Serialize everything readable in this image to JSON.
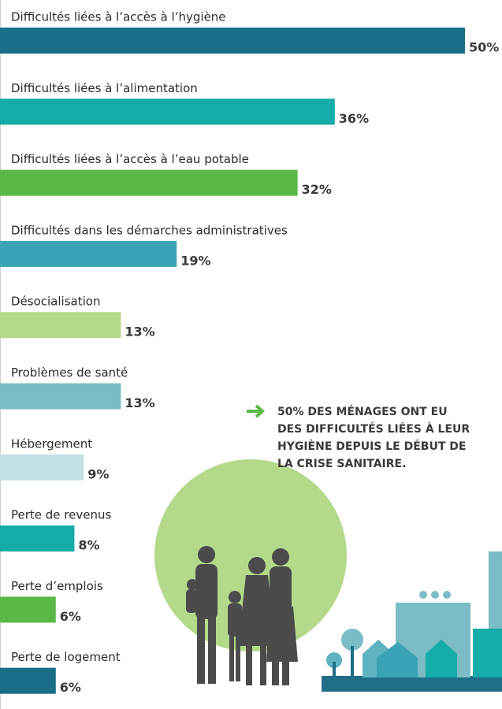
{
  "chart_data": {
    "type": "bar",
    "orientation": "horizontal",
    "categories": [
      "Difficultés liées à l’accès à l’hygiène",
      "Difficultés liées à l’alimentation",
      "Difficultés liées à l’accès à l’eau potable",
      "Difficultés dans les démarches administratives",
      "Désocialisation",
      "Problèmes de santé",
      "Hébergement",
      "Perte de revenus",
      "Perte d’emplois",
      "Perte de logement"
    ],
    "values": [
      50,
      36,
      32,
      19,
      13,
      13,
      9,
      8,
      6,
      6
    ],
    "value_labels": [
      "50%",
      "36%",
      "32%",
      "19%",
      "13%",
      "13%",
      "9%",
      "8%",
      "6%",
      "6%"
    ],
    "colors": [
      "#1a6e87",
      "#14aba9",
      "#5ab946",
      "#3aa3b5",
      "#b5d98b",
      "#7bbcc6",
      "#c2e0e6",
      "#14aba9",
      "#5ab946",
      "#1a6e87"
    ],
    "annotation": [
      "50% DES MÉNAGES ONT EU",
      "DES DIFFICULTÉS LIÉES À LEUR",
      "HYGIÈNE DEPUIS LE DÉBUT DE",
      "LA CRISE SANITAIRE."
    ]
  }
}
